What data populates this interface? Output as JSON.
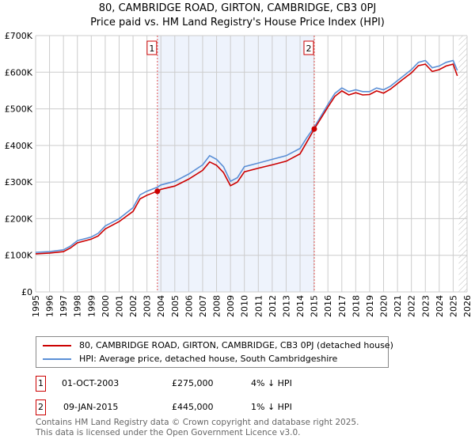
{
  "title": "80, CAMBRIDGE ROAD, GIRTON, CAMBRIDGE, CB3 0PJ",
  "subtitle": "Price paid vs. HM Land Registry's House Price Index (HPI)",
  "chart_data": {
    "type": "line",
    "title": "80, CAMBRIDGE ROAD, GIRTON, CAMBRIDGE, CB3 0PJ",
    "xlim": [
      1995,
      2026
    ],
    "ylim": [
      0,
      700000
    ],
    "x_ticks": [
      "1995",
      "1996",
      "1997",
      "1998",
      "1999",
      "2000",
      "2001",
      "2002",
      "2003",
      "2004",
      "2005",
      "2006",
      "2007",
      "2008",
      "2009",
      "2010",
      "2011",
      "2012",
      "2013",
      "2014",
      "2015",
      "2016",
      "2017",
      "2018",
      "2019",
      "2020",
      "2021",
      "2022",
      "2023",
      "2024",
      "2025",
      "2026"
    ],
    "y_ticks": [
      {
        "v": 0,
        "label": "£0"
      },
      {
        "v": 100000,
        "label": "£100K"
      },
      {
        "v": 200000,
        "label": "£200K"
      },
      {
        "v": 300000,
        "label": "£300K"
      },
      {
        "v": 400000,
        "label": "£400K"
      },
      {
        "v": 500000,
        "label": "£500K"
      },
      {
        "v": 600000,
        "label": "£600K"
      },
      {
        "v": 700000,
        "label": "£700K"
      }
    ],
    "shaded_range": [
      2003.75,
      2015.02
    ],
    "forecast_from": 2025.4,
    "series": [
      {
        "name": "80, CAMBRIDGE ROAD, GIRTON, CAMBRIDGE, CB3 0PJ (detached house)",
        "color": "#cc0000",
        "x": [
          1995,
          1996,
          1997,
          1997.5,
          1998,
          1999,
          1999.5,
          2000,
          2001,
          2002,
          2002.5,
          2003,
          2003.75,
          2004,
          2005,
          2006,
          2007,
          2007.5,
          2008,
          2008.5,
          2009,
          2009.5,
          2010,
          2011,
          2012,
          2013,
          2014,
          2014.5,
          2015.02,
          2015.5,
          2016,
          2016.5,
          2017,
          2017.5,
          2018,
          2018.5,
          2019,
          2019.5,
          2020,
          2020.5,
          2021,
          2021.5,
          2022,
          2022.5,
          2023,
          2023.5,
          2024,
          2024.5,
          2025,
          2025.3
        ],
        "y": [
          104000,
          106000,
          110000,
          120000,
          134000,
          144000,
          153000,
          172000,
          192000,
          220000,
          254000,
          264000,
          275000,
          280000,
          289000,
          308000,
          332000,
          355000,
          346000,
          326000,
          290000,
          300000,
          328000,
          338000,
          347000,
          357000,
          377000,
          410000,
          445000,
          474000,
          505000,
          534000,
          549000,
          538000,
          544000,
          538000,
          539000,
          549000,
          543000,
          554000,
          569000,
          584000,
          598000,
          618000,
          622000,
          602000,
          607000,
          617000,
          622000,
          590000
        ]
      },
      {
        "name": "HPI: Average price, detached house, South Cambridgeshire",
        "color": "#5b8fd6",
        "x": [
          1995,
          1996,
          1997,
          1997.5,
          1998,
          1999,
          1999.5,
          2000,
          2001,
          2002,
          2002.5,
          2003,
          2003.75,
          2004,
          2005,
          2006,
          2007,
          2007.5,
          2008,
          2008.5,
          2009,
          2009.5,
          2010,
          2011,
          2012,
          2013,
          2014,
          2014.5,
          2015.02,
          2015.5,
          2016,
          2016.5,
          2017,
          2017.5,
          2018,
          2018.5,
          2019,
          2019.5,
          2020,
          2020.5,
          2021,
          2021.5,
          2022,
          2022.5,
          2023,
          2023.5,
          2024,
          2024.5,
          2025,
          2025.3
        ],
        "y": [
          108000,
          110000,
          115000,
          125000,
          140000,
          150000,
          160000,
          180000,
          200000,
          230000,
          265000,
          275000,
          286000,
          292000,
          302000,
          322000,
          347000,
          372000,
          362000,
          342000,
          302000,
          312000,
          342000,
          352000,
          362000,
          372000,
          392000,
          422000,
          450000,
          480000,
          512000,
          542000,
          557000,
          547000,
          552000,
          547000,
          547000,
          557000,
          552000,
          562000,
          577000,
          592000,
          607000,
          627000,
          632000,
          612000,
          617000,
          627000,
          632000,
          605000
        ]
      }
    ],
    "sales": [
      {
        "label": "1",
        "x": 2003.75,
        "price": 275000
      },
      {
        "label": "2",
        "x": 2015.02,
        "price": 445000
      }
    ]
  },
  "legend": {
    "red": "80, CAMBRIDGE ROAD, GIRTON, CAMBRIDGE, CB3 0PJ (detached house)",
    "blue": "HPI: Average price, detached house, South Cambridgeshire"
  },
  "transactions": [
    {
      "num": "1",
      "date": "01-OCT-2003",
      "price": "£275,000",
      "delta": "4% ↓ HPI"
    },
    {
      "num": "2",
      "date": "09-JAN-2015",
      "price": "£445,000",
      "delta": "1% ↓ HPI"
    }
  ],
  "footer": [
    "Contains HM Land Registry data © Crown copyright and database right 2025.",
    "This data is licensed under the Open Government Licence v3.0."
  ]
}
